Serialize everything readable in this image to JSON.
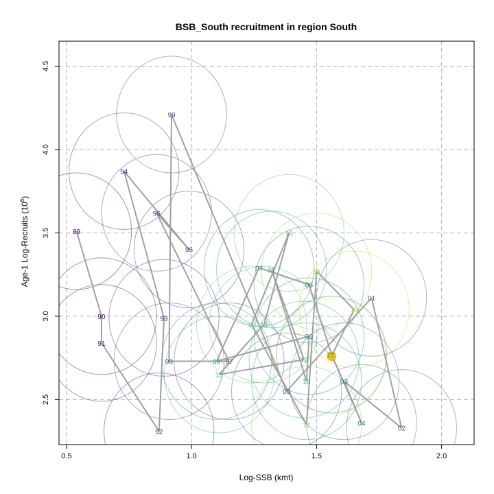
{
  "chart_data": {
    "type": "scatter",
    "title": "BSB_South recruitment in region South",
    "xlabel": "Log-SSB (kmt)",
    "ylabel_main": "Age-1 Log-Recruits (10",
    "ylabel_sup": "6",
    "ylabel_end": ")",
    "xlim": [
      0.47,
      2.13
    ],
    "ylim": [
      2.23,
      4.65
    ],
    "x_ticks": [
      0.5,
      1.0,
      1.5,
      2.0
    ],
    "x_tick_labels": [
      "0.5",
      "1.0",
      "1.5",
      "2.0"
    ],
    "y_ticks": [
      2.5,
      3.0,
      3.5,
      4.0,
      4.5
    ],
    "y_tick_labels": [
      "2.5",
      "3.0",
      "3.5",
      "4.0",
      "4.5"
    ],
    "grid": true,
    "ellipse_rx": 0.22,
    "ellipse_ry": 0.35,
    "highlight_color": "#f2b70d",
    "line_color": "#a0a0a0",
    "points": [
      {
        "label": "89",
        "x": 0.54,
        "y": 3.51,
        "color": "#440154"
      },
      {
        "label": "90",
        "x": 0.64,
        "y": 3.0,
        "color": "#46085c"
      },
      {
        "label": "91",
        "x": 0.64,
        "y": 2.84,
        "color": "#471164"
      },
      {
        "label": "92",
        "x": 0.87,
        "y": 2.31,
        "color": "#481a6c"
      },
      {
        "label": "93",
        "x": 0.89,
        "y": 2.99,
        "color": "#482374"
      },
      {
        "label": "94",
        "x": 0.73,
        "y": 3.87,
        "color": "#472c7a"
      },
      {
        "label": "95",
        "x": 0.99,
        "y": 3.4,
        "color": "#46337f"
      },
      {
        "label": "96",
        "x": 0.86,
        "y": 3.62,
        "color": "#443b84"
      },
      {
        "label": "97",
        "x": 1.15,
        "y": 2.73,
        "color": "#424388"
      },
      {
        "label": "98",
        "x": 0.91,
        "y": 2.73,
        "color": "#3f4a8a"
      },
      {
        "label": "99",
        "x": 0.92,
        "y": 4.21,
        "color": "#3c518b"
      },
      {
        "label": "00",
        "x": 1.38,
        "y": 2.55,
        "color": "#38598c"
      },
      {
        "label": "01",
        "x": 1.72,
        "y": 3.11,
        "color": "#355f8d"
      },
      {
        "label": "02",
        "x": 1.84,
        "y": 2.33,
        "color": "#32658e"
      },
      {
        "label": "03",
        "x": 1.61,
        "y": 2.61,
        "color": "#2f6c8e"
      },
      {
        "label": "04",
        "x": 1.68,
        "y": 2.36,
        "color": "#2c728e"
      },
      {
        "label": "05",
        "x": 1.56,
        "y": 2.77,
        "color": "#29788e"
      },
      {
        "label": "06",
        "x": 1.47,
        "y": 3.19,
        "color": "#277f8e"
      },
      {
        "label": "07",
        "x": 1.27,
        "y": 3.29,
        "color": "#24858e"
      },
      {
        "label": "08",
        "x": 1.1,
        "y": 2.73,
        "color": "#228b8d"
      },
      {
        "label": "09",
        "x": 1.47,
        "y": 2.88,
        "color": "#1f928c"
      },
      {
        "label": "10",
        "x": 1.46,
        "y": 2.61,
        "color": "#1f988b"
      },
      {
        "label": "11",
        "x": 1.32,
        "y": 3.28,
        "color": "#20a386"
      },
      {
        "label": "12",
        "x": 1.45,
        "y": 2.74,
        "color": "#27ad81"
      },
      {
        "label": "13",
        "x": 1.11,
        "y": 2.65,
        "color": "#35b779"
      },
      {
        "label": "14",
        "x": 1.29,
        "y": 2.95,
        "color": "#43bf71"
      },
      {
        "label": "15",
        "x": 1.39,
        "y": 3.5,
        "color": "#56c667"
      },
      {
        "label": "16",
        "x": 1.24,
        "y": 2.95,
        "color": "#6ccd5a"
      },
      {
        "label": "17",
        "x": 1.46,
        "y": 2.35,
        "color": "#84d44b"
      },
      {
        "label": "18",
        "x": 1.5,
        "y": 3.27,
        "color": "#a0da39"
      },
      {
        "label": "19",
        "x": 1.65,
        "y": 3.04,
        "color": "#bade28"
      },
      {
        "label": "20",
        "x": 1.56,
        "y": 2.76,
        "color": "#d8e219"
      }
    ]
  }
}
